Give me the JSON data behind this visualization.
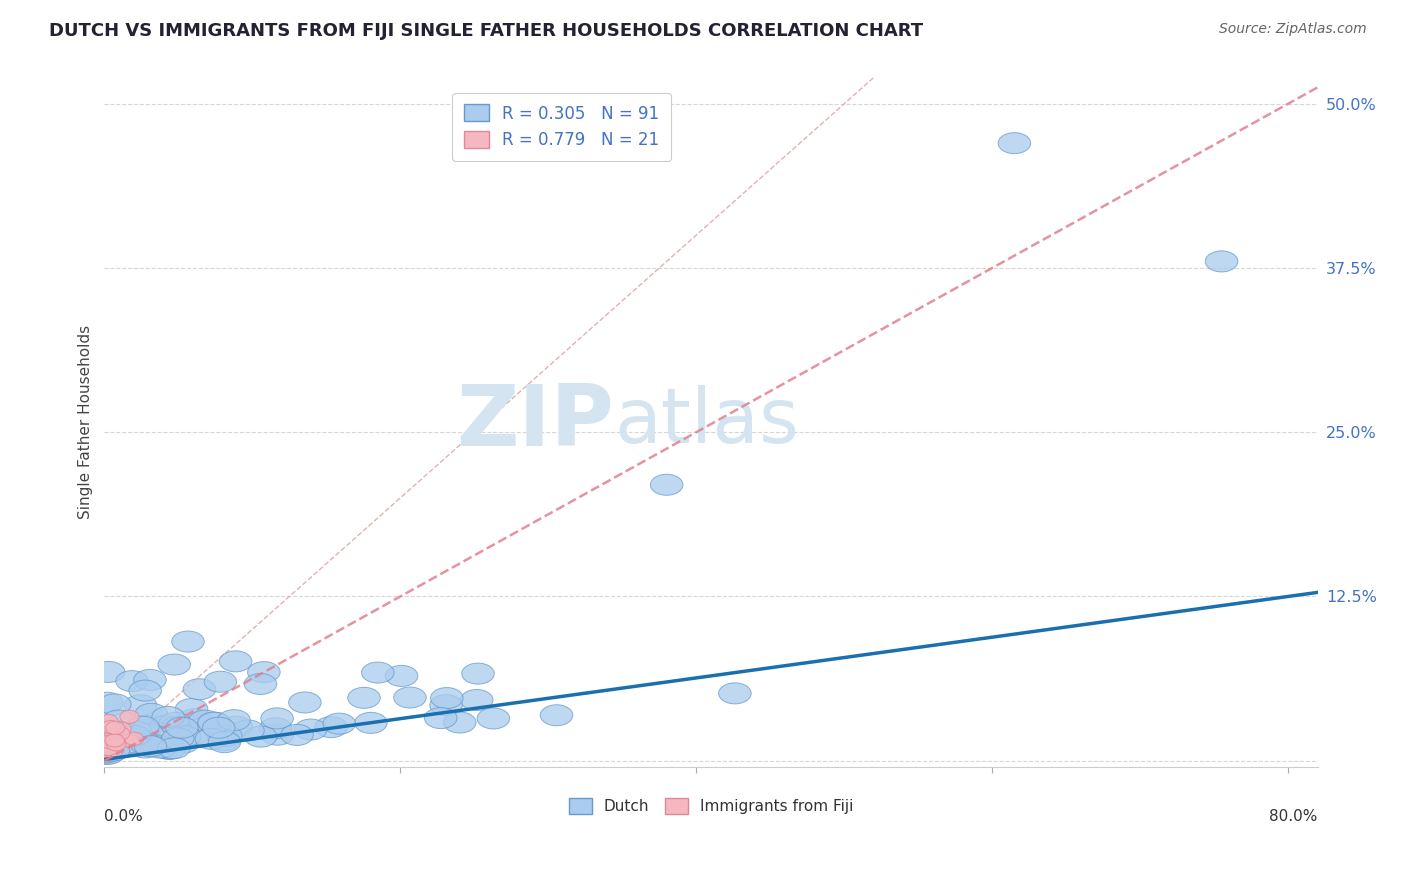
{
  "title": "DUTCH VS IMMIGRANTS FROM FIJI SINGLE FATHER HOUSEHOLDS CORRELATION CHART",
  "source": "Source: ZipAtlas.com",
  "ylabel": "Single Father Households",
  "xlim": [
    0.0,
    0.82
  ],
  "ylim": [
    -0.005,
    0.52
  ],
  "ytick_vals": [
    0.0,
    0.125,
    0.25,
    0.375,
    0.5
  ],
  "ytick_labels": [
    "",
    "12.5%",
    "25.0%",
    "37.5%",
    "50.0%"
  ],
  "legend_r_dutch": "R = 0.305",
  "legend_n_dutch": "N = 91",
  "legend_r_fiji": "R = 0.779",
  "legend_n_fiji": "N = 21",
  "dutch_line_color": "#1a6faf",
  "fiji_line_color": "#e08090",
  "dutch_scatter_facecolor": "#aaccee",
  "dutch_scatter_edgecolor": "#6699cc",
  "fiji_scatter_facecolor": "#f5b8c0",
  "fiji_scatter_edgecolor": "#e08898",
  "diag_line_color": "#ddaaaa",
  "watermark_zip": "ZIP",
  "watermark_atlas": "atlas",
  "watermark_color": "#d4e4f0",
  "background_color": "#ffffff",
  "grid_color": "#cccccc",
  "title_color": "#222233",
  "source_color": "#666666",
  "ylabel_color": "#444444",
  "ytick_color": "#4472c4",
  "dutch_line_intercept": 0.001,
  "dutch_line_slope": 0.155,
  "fiji_line_slope": 0.625,
  "fiji_line_intercept": 0.0
}
